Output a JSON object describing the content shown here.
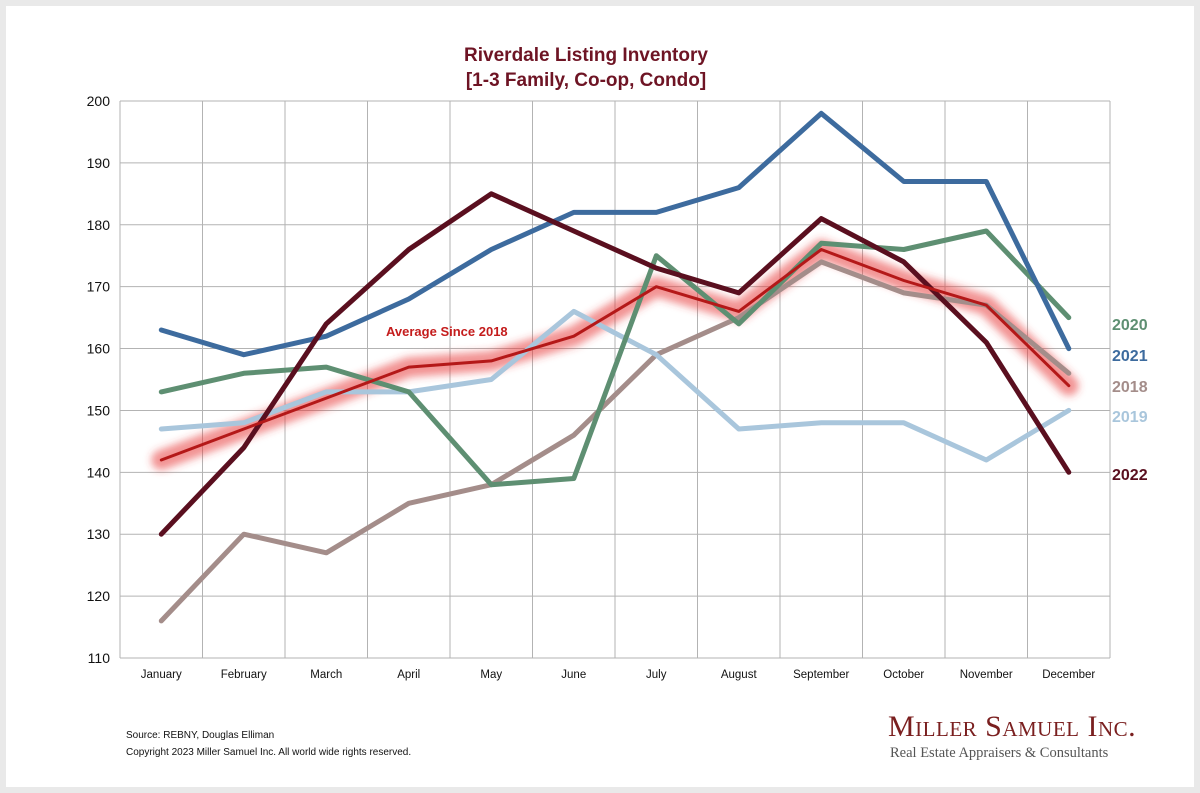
{
  "chart_data": {
    "type": "line",
    "title": "Riverdale Listing Inventory",
    "subtitle": "[1-3 Family, Co-op, Condo]",
    "categories": [
      "January",
      "February",
      "March",
      "April",
      "May",
      "June",
      "July",
      "August",
      "September",
      "October",
      "November",
      "December"
    ],
    "ylim": [
      110,
      200
    ],
    "y_ticks": [
      110,
      120,
      130,
      140,
      150,
      160,
      170,
      180,
      190,
      200
    ],
    "grid": true,
    "legend": "inline labels at right end of lines",
    "series": [
      {
        "name": "2018",
        "color": "#a48d8a",
        "values": [
          116,
          130,
          127,
          135,
          138,
          146,
          159,
          165,
          174,
          169,
          167,
          156
        ]
      },
      {
        "name": "2019",
        "color": "#a9c6dc",
        "values": [
          147,
          148,
          153,
          153,
          155,
          166,
          159,
          147,
          148,
          148,
          142,
          150
        ]
      },
      {
        "name": "2020",
        "color": "#5e8f72",
        "values": [
          153,
          156,
          157,
          153,
          138,
          139,
          175,
          164,
          177,
          176,
          179,
          165
        ]
      },
      {
        "name": "2021",
        "color": "#3d6b9e",
        "values": [
          163,
          159,
          162,
          168,
          176,
          182,
          182,
          186,
          198,
          187,
          187,
          160
        ]
      },
      {
        "name": "2022",
        "color": "#5a0f1f",
        "values": [
          130,
          144,
          164,
          176,
          185,
          179,
          173,
          169,
          181,
          174,
          161,
          140
        ]
      }
    ],
    "average": {
      "name": "Average  Since 2018",
      "color": "#d42323",
      "values": [
        142,
        147,
        152,
        157,
        158,
        162,
        170,
        166,
        176,
        171,
        167,
        154
      ]
    }
  },
  "footer": {
    "source": "Source: REBNY, Douglas Elliman",
    "copyright": "Copyright 2023 Miller Samuel Inc.  All world wide rights reserved."
  },
  "brand": {
    "name": "Miller Samuel Inc.",
    "tagline": "Real Estate Appraisers & Consultants"
  }
}
